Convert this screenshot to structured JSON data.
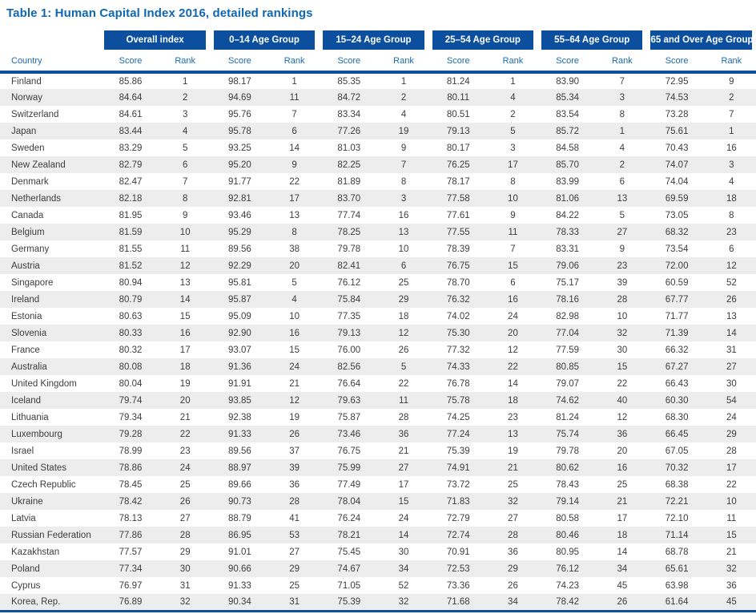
{
  "title": "Table 1: Human Capital Index 2016, detailed rankings",
  "colors": {
    "title_blue": "#0e67b2",
    "group_header_bg": "#0b4f9e",
    "subheader_blue": "#1a69b0",
    "row_stripe": "#ededed",
    "body_text": "#3d3d3d"
  },
  "table": {
    "country_header": "Country",
    "score_label": "Score",
    "rank_label": "Rank",
    "groups": [
      {
        "label": "Overall index"
      },
      {
        "label": "0–14 Age Group"
      },
      {
        "label": "15–24 Age Group"
      },
      {
        "label": "25–54 Age Group"
      },
      {
        "label": "55–64 Age Group"
      },
      {
        "label": "65 and Over Age Group"
      }
    ],
    "rows": [
      [
        "Finland",
        "85.86",
        "1",
        "98.17",
        "1",
        "85.35",
        "1",
        "81.24",
        "1",
        "83.90",
        "7",
        "72.95",
        "9"
      ],
      [
        "Norway",
        "84.64",
        "2",
        "94.69",
        "11",
        "84.72",
        "2",
        "80.11",
        "4",
        "85.34",
        "3",
        "74.53",
        "2"
      ],
      [
        "Switzerland",
        "84.61",
        "3",
        "95.76",
        "7",
        "83.34",
        "4",
        "80.51",
        "2",
        "83.54",
        "8",
        "73.28",
        "7"
      ],
      [
        "Japan",
        "83.44",
        "4",
        "95.78",
        "6",
        "77.26",
        "19",
        "79.13",
        "5",
        "85.72",
        "1",
        "75.61",
        "1"
      ],
      [
        "Sweden",
        "83.29",
        "5",
        "93.25",
        "14",
        "81.03",
        "9",
        "80.17",
        "3",
        "84.58",
        "4",
        "70.43",
        "16"
      ],
      [
        "New Zealand",
        "82.79",
        "6",
        "95.20",
        "9",
        "82.25",
        "7",
        "76.25",
        "17",
        "85.70",
        "2",
        "74.07",
        "3"
      ],
      [
        "Denmark",
        "82.47",
        "7",
        "91.77",
        "22",
        "81.89",
        "8",
        "78.17",
        "8",
        "83.99",
        "6",
        "74.04",
        "4"
      ],
      [
        "Netherlands",
        "82.18",
        "8",
        "92.81",
        "17",
        "83.70",
        "3",
        "77.58",
        "10",
        "81.06",
        "13",
        "69.59",
        "18"
      ],
      [
        "Canada",
        "81.95",
        "9",
        "93.46",
        "13",
        "77.74",
        "16",
        "77.61",
        "9",
        "84.22",
        "5",
        "73.05",
        "8"
      ],
      [
        "Belgium",
        "81.59",
        "10",
        "95.29",
        "8",
        "78.25",
        "13",
        "77.55",
        "11",
        "78.33",
        "27",
        "68.32",
        "23"
      ],
      [
        "Germany",
        "81.55",
        "11",
        "89.56",
        "38",
        "79.78",
        "10",
        "78.39",
        "7",
        "83.31",
        "9",
        "73.54",
        "6"
      ],
      [
        "Austria",
        "81.52",
        "12",
        "92.29",
        "20",
        "82.41",
        "6",
        "76.75",
        "15",
        "79.06",
        "23",
        "72.00",
        "12"
      ],
      [
        "Singapore",
        "80.94",
        "13",
        "95.81",
        "5",
        "76.12",
        "25",
        "78.70",
        "6",
        "75.17",
        "39",
        "60.59",
        "52"
      ],
      [
        "Ireland",
        "80.79",
        "14",
        "95.87",
        "4",
        "75.84",
        "29",
        "76.32",
        "16",
        "78.16",
        "28",
        "67.77",
        "26"
      ],
      [
        "Estonia",
        "80.63",
        "15",
        "95.09",
        "10",
        "77.35",
        "18",
        "74.02",
        "24",
        "82.98",
        "10",
        "71.77",
        "13"
      ],
      [
        "Slovenia",
        "80.33",
        "16",
        "92.90",
        "16",
        "79.13",
        "12",
        "75.30",
        "20",
        "77.04",
        "32",
        "71.39",
        "14"
      ],
      [
        "France",
        "80.32",
        "17",
        "93.07",
        "15",
        "76.00",
        "26",
        "77.32",
        "12",
        "77.59",
        "30",
        "66.32",
        "31"
      ],
      [
        "Australia",
        "80.08",
        "18",
        "91.36",
        "24",
        "82.56",
        "5",
        "74.33",
        "22",
        "80.85",
        "15",
        "67.27",
        "27"
      ],
      [
        "United Kingdom",
        "80.04",
        "19",
        "91.91",
        "21",
        "76.64",
        "22",
        "76.78",
        "14",
        "79.07",
        "22",
        "66.43",
        "30"
      ],
      [
        "Iceland",
        "79.74",
        "20",
        "93.85",
        "12",
        "79.63",
        "11",
        "75.78",
        "18",
        "74.62",
        "40",
        "60.30",
        "54"
      ],
      [
        "Lithuania",
        "79.34",
        "21",
        "92.38",
        "19",
        "75.87",
        "28",
        "74.25",
        "23",
        "81.24",
        "12",
        "68.30",
        "24"
      ],
      [
        "Luxembourg",
        "79.28",
        "22",
        "91.33",
        "26",
        "73.46",
        "36",
        "77.24",
        "13",
        "75.74",
        "36",
        "66.45",
        "29"
      ],
      [
        "Israel",
        "78.99",
        "23",
        "89.56",
        "37",
        "76.75",
        "21",
        "75.39",
        "19",
        "79.78",
        "20",
        "67.05",
        "28"
      ],
      [
        "United States",
        "78.86",
        "24",
        "88.97",
        "39",
        "75.99",
        "27",
        "74.91",
        "21",
        "80.62",
        "16",
        "70.32",
        "17"
      ],
      [
        "Czech Republic",
        "78.45",
        "25",
        "89.66",
        "36",
        "77.49",
        "17",
        "73.72",
        "25",
        "78.43",
        "25",
        "68.38",
        "22"
      ],
      [
        "Ukraine",
        "78.42",
        "26",
        "90.73",
        "28",
        "78.04",
        "15",
        "71.83",
        "32",
        "79.14",
        "21",
        "72.21",
        "10"
      ],
      [
        "Latvia",
        "78.13",
        "27",
        "88.79",
        "41",
        "76.24",
        "24",
        "72.79",
        "27",
        "80.58",
        "17",
        "72.10",
        "11"
      ],
      [
        "Russian Federation",
        "77.86",
        "28",
        "86.95",
        "53",
        "78.21",
        "14",
        "72.74",
        "28",
        "80.46",
        "18",
        "71.14",
        "15"
      ],
      [
        "Kazakhstan",
        "77.57",
        "29",
        "91.01",
        "27",
        "75.45",
        "30",
        "70.91",
        "36",
        "80.95",
        "14",
        "68.78",
        "21"
      ],
      [
        "Poland",
        "77.34",
        "30",
        "90.66",
        "29",
        "74.67",
        "34",
        "72.53",
        "29",
        "76.12",
        "34",
        "65.61",
        "32"
      ],
      [
        "Cyprus",
        "76.97",
        "31",
        "91.33",
        "25",
        "71.05",
        "52",
        "73.36",
        "26",
        "74.23",
        "45",
        "63.98",
        "36"
      ],
      [
        "Korea, Rep.",
        "76.89",
        "32",
        "90.34",
        "31",
        "75.39",
        "32",
        "71.68",
        "34",
        "78.42",
        "26",
        "61.64",
        "45"
      ]
    ]
  }
}
